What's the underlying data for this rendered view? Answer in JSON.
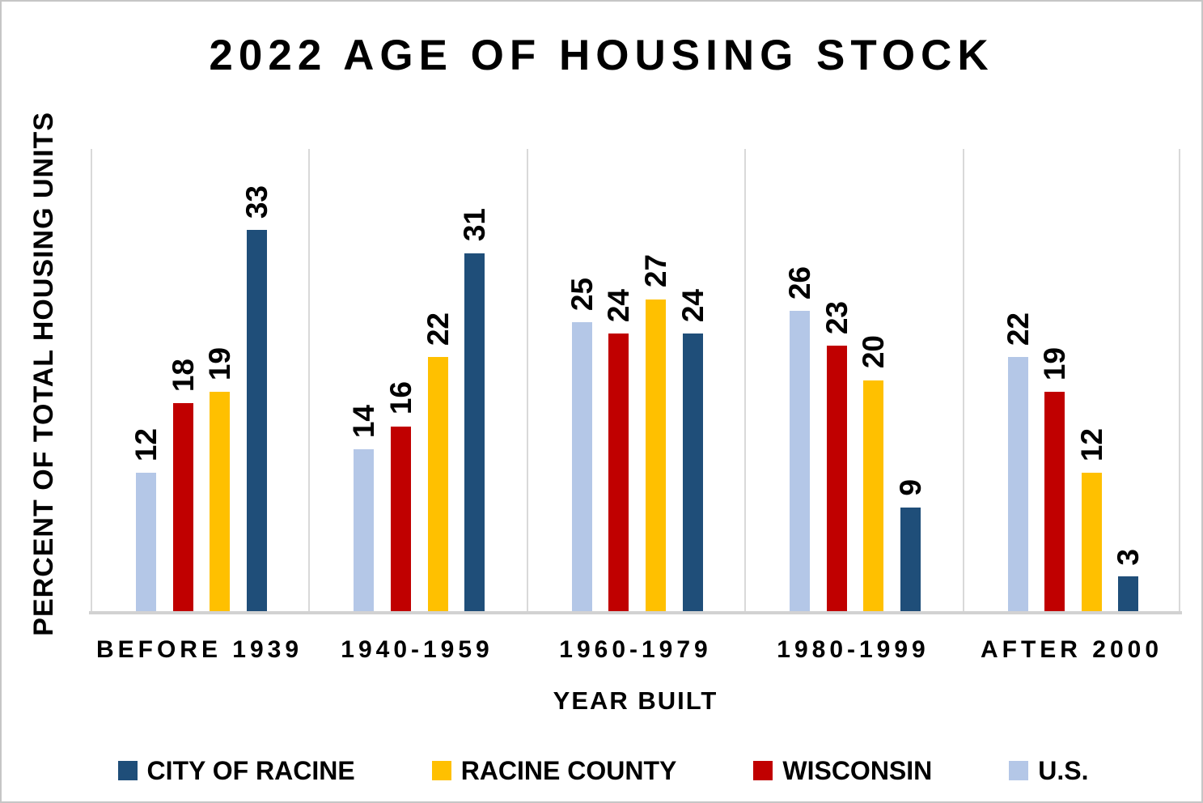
{
  "chart_data": {
    "type": "bar",
    "title": "2022 AGE OF HOUSING STOCK",
    "xlabel": "YEAR BUILT",
    "ylabel": "PERCENT OF TOTAL HOUSING UNITS",
    "ylim": [
      0,
      40
    ],
    "grid": "vertical-category-separators",
    "value_labels": "rotated-90-above-bars",
    "categories": [
      "BEFORE 1939",
      "1940-1959",
      "1960-1979",
      "1980-1999",
      "AFTER 2000"
    ],
    "series": [
      {
        "name": "U.S.",
        "color": "#b4c7e7",
        "values": [
          12,
          14,
          25,
          26,
          22
        ]
      },
      {
        "name": "WISCONSIN",
        "color": "#c00000",
        "values": [
          18,
          16,
          24,
          23,
          19
        ]
      },
      {
        "name": "RACINE COUNTY",
        "color": "#ffc000",
        "values": [
          19,
          22,
          27,
          20,
          12
        ]
      },
      {
        "name": "CITY OF RACINE",
        "color": "#1f4e79",
        "values": [
          33,
          31,
          24,
          9,
          3
        ]
      }
    ],
    "legend_position": "bottom"
  },
  "legend": {
    "items": [
      {
        "label": "CITY OF RACINE",
        "color": "#1f4e79"
      },
      {
        "label": "RACINE COUNTY",
        "color": "#ffc000"
      },
      {
        "label": "WISCONSIN",
        "color": "#c00000"
      },
      {
        "label": "U.S.",
        "color": "#b4c7e7"
      }
    ]
  },
  "colors": {
    "gridline": "#d9d9d9",
    "axis_line": "#d2d2d2",
    "border": "#c6c6c6",
    "text": "#000000"
  }
}
